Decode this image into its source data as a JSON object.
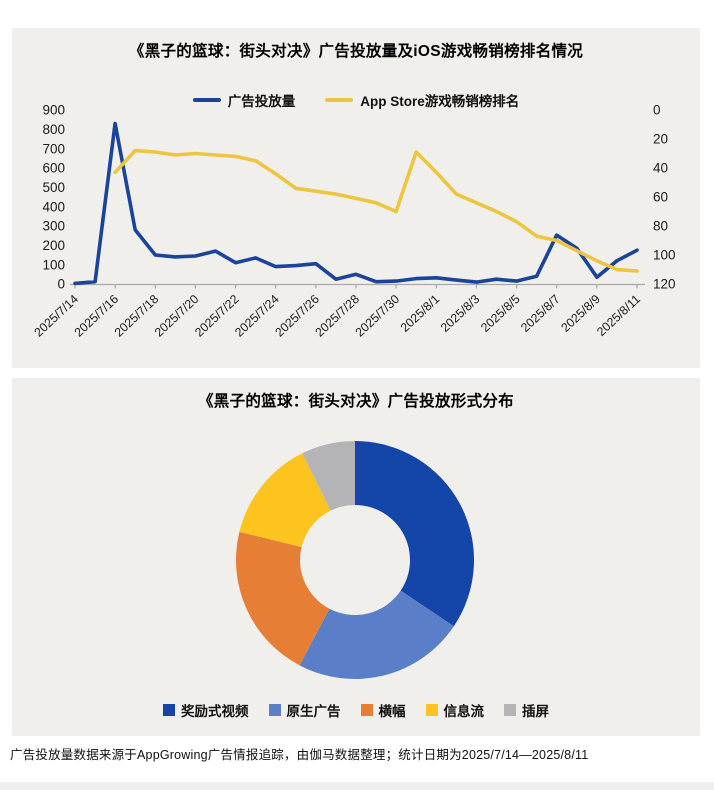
{
  "footer": {
    "text": "广告投放量数据来源于AppGrowing广告情报追踪，由伽马数据整理；统计日期为2025/7/14—2025/8/11"
  },
  "chart_data": [
    {
      "type": "line",
      "title": "《黑子的篮球：街头对决》广告投放量及iOS游戏畅销榜排名情况",
      "x": [
        "2025/7/14",
        "2025/7/15",
        "2025/7/16",
        "2025/7/17",
        "2025/7/18",
        "2025/7/19",
        "2025/7/20",
        "2025/7/21",
        "2025/7/22",
        "2025/7/23",
        "2025/7/24",
        "2025/7/25",
        "2025/7/26",
        "2025/7/27",
        "2025/7/28",
        "2025/7/29",
        "2025/7/30",
        "2025/7/31",
        "2025/8/1",
        "2025/8/2",
        "2025/8/3",
        "2025/8/4",
        "2025/8/5",
        "2025/8/6",
        "2025/8/7",
        "2025/8/8",
        "2025/8/9",
        "2025/8/10",
        "2025/8/11"
      ],
      "x_tick_every": 2,
      "series": [
        {
          "name": "广告投放量",
          "axis": "left",
          "color": "#1a449c",
          "values": [
            3,
            12,
            830,
            280,
            150,
            140,
            145,
            170,
            110,
            135,
            90,
            95,
            105,
            25,
            50,
            12,
            15,
            28,
            32,
            20,
            10,
            25,
            15,
            40,
            253,
            185,
            35,
            120,
            175
          ]
        },
        {
          "name": "App Store游戏畅销榜排名",
          "axis": "right",
          "color": "#edc53e",
          "values": [
            null,
            null,
            43,
            28,
            29,
            31,
            30,
            31,
            32,
            35,
            44,
            54,
            56,
            58,
            61,
            64,
            70,
            29,
            43,
            58,
            64,
            70,
            77,
            87,
            90,
            97,
            104,
            110,
            111
          ]
        }
      ],
      "left_axis": {
        "min": 0,
        "max": 900,
        "step": 100
      },
      "right_axis": {
        "min": 0,
        "max": 120,
        "step": 20,
        "inverted_ranking": true
      },
      "grid": false,
      "legend_position": "top"
    },
    {
      "type": "pie",
      "donut": true,
      "title": "《黑子的篮球：街头对决》广告投放形式分布",
      "labels": [
        "奖励式视频",
        "原生广告",
        "横幅",
        "信息流",
        "插屏"
      ],
      "values_percent": [
        34.4,
        23.3,
        21.1,
        13.9,
        7.3
      ],
      "colors": [
        "#1445a8",
        "#5b7ec8",
        "#e77e35",
        "#fdc31f",
        "#b4b4b6"
      ],
      "legend_position": "bottom"
    }
  ]
}
